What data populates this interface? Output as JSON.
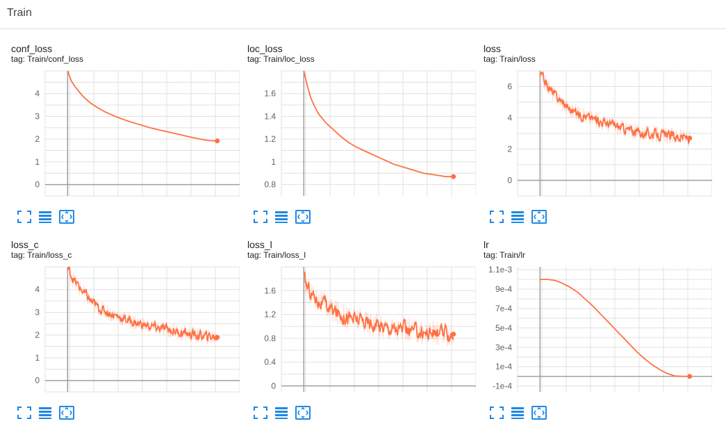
{
  "header": {
    "title": "Train"
  },
  "accent_color": "#ff7043",
  "toolbar_icons": [
    "fit-domain-icon",
    "toggle-log-scale-icon",
    "expand-icon"
  ],
  "chart_data": [
    {
      "type": "line",
      "title": "conf_loss",
      "tag": "tag: Train/conf_loss",
      "xlim": [
        -0.3,
        2.3
      ],
      "ylim": [
        -0.5,
        5
      ],
      "yticks": [
        0,
        1,
        2,
        3,
        4
      ],
      "ytick_labels": [
        "0",
        "1",
        "2",
        "3",
        "4"
      ],
      "grid": true,
      "noise": 0,
      "series": [
        {
          "x": [
            0,
            0.05,
            0.1,
            0.2,
            0.3,
            0.4,
            0.5,
            0.6,
            0.7,
            0.8,
            0.9,
            1.0,
            1.1,
            1.2,
            1.3,
            1.4,
            1.5,
            1.6,
            1.7,
            1.8,
            1.9,
            2.0
          ],
          "values": [
            5.0,
            4.55,
            4.3,
            3.9,
            3.6,
            3.38,
            3.2,
            3.05,
            2.92,
            2.8,
            2.7,
            2.6,
            2.5,
            2.42,
            2.35,
            2.27,
            2.2,
            2.12,
            2.05,
            1.98,
            1.93,
            1.92
          ]
        }
      ]
    },
    {
      "type": "line",
      "title": "loc_loss",
      "tag": "tag: Train/loc_loss",
      "xlim": [
        -0.3,
        2.3
      ],
      "ylim": [
        0.7,
        1.8
      ],
      "yticks": [
        0.8,
        1,
        1.2,
        1.4,
        1.6
      ],
      "ytick_labels": [
        "0.8",
        "1",
        "1.2",
        "1.4",
        "1.6"
      ],
      "grid": true,
      "noise": 0,
      "series": [
        {
          "x": [
            0,
            0.05,
            0.1,
            0.15,
            0.2,
            0.3,
            0.4,
            0.5,
            0.6,
            0.7,
            0.8,
            0.9,
            1.0,
            1.1,
            1.2,
            1.3,
            1.4,
            1.5,
            1.6,
            1.7,
            1.8,
            1.9,
            2.0
          ],
          "values": [
            1.8,
            1.66,
            1.55,
            1.48,
            1.42,
            1.34,
            1.28,
            1.22,
            1.17,
            1.13,
            1.1,
            1.07,
            1.04,
            1.01,
            0.98,
            0.96,
            0.94,
            0.92,
            0.9,
            0.89,
            0.88,
            0.87,
            0.87
          ]
        }
      ]
    },
    {
      "type": "line",
      "title": "loss",
      "tag": "tag: Train/loss",
      "xlim": [
        -0.3,
        2.3
      ],
      "ylim": [
        -1,
        7
      ],
      "yticks": [
        0,
        2,
        4,
        6
      ],
      "ytick_labels": [
        "0",
        "2",
        "4",
        "6"
      ],
      "grid": true,
      "noise": 0.3,
      "series": [
        {
          "x": [
            0,
            0.1,
            0.2,
            0.3,
            0.4,
            0.6,
            0.8,
            1.0,
            1.2,
            1.4,
            1.6,
            1.8,
            2.0
          ],
          "values": [
            6.8,
            6.0,
            5.4,
            5.0,
            4.5,
            4.1,
            3.8,
            3.5,
            3.2,
            3.0,
            2.9,
            2.8,
            2.7
          ]
        }
      ]
    },
    {
      "type": "line",
      "title": "loss_c",
      "tag": "tag: Train/loss_c",
      "xlim": [
        -0.3,
        2.3
      ],
      "ylim": [
        -0.5,
        5
      ],
      "yticks": [
        0,
        1,
        2,
        3,
        4
      ],
      "ytick_labels": [
        "0",
        "1",
        "2",
        "3",
        "4"
      ],
      "grid": true,
      "noise": 0.2,
      "series": [
        {
          "x": [
            0,
            0.1,
            0.2,
            0.3,
            0.4,
            0.6,
            0.8,
            1.0,
            1.2,
            1.4,
            1.6,
            1.8,
            2.0
          ],
          "values": [
            4.9,
            4.3,
            3.9,
            3.5,
            3.2,
            2.9,
            2.65,
            2.45,
            2.3,
            2.2,
            2.05,
            1.95,
            1.9
          ]
        }
      ]
    },
    {
      "type": "line",
      "title": "loss_l",
      "tag": "tag: Train/loss_l",
      "xlim": [
        -0.3,
        2.3
      ],
      "ylim": [
        -0.1,
        2.0
      ],
      "yticks": [
        0,
        0.4,
        0.8,
        1.2,
        1.6
      ],
      "ytick_labels": [
        "0",
        "0.4",
        "0.8",
        "1.2",
        "1.6"
      ],
      "grid": true,
      "noise": 0.12,
      "series": [
        {
          "x": [
            0,
            0.1,
            0.2,
            0.3,
            0.4,
            0.6,
            0.8,
            1.0,
            1.2,
            1.4,
            1.6,
            1.8,
            2.0
          ],
          "values": [
            1.75,
            1.55,
            1.42,
            1.33,
            1.25,
            1.15,
            1.08,
            1.02,
            0.97,
            0.93,
            0.9,
            0.88,
            0.87
          ]
        }
      ]
    },
    {
      "type": "line",
      "title": "lr",
      "tag": "tag: Train/lr",
      "xlim": [
        -0.3,
        2.3
      ],
      "ylim": [
        -0.00016,
        0.00113
      ],
      "yticks": [
        -0.0001,
        0.0001,
        0.0003,
        0.0005,
        0.0007,
        0.0009,
        0.0011
      ],
      "ytick_labels": [
        "-1e-4",
        "1e-4",
        "3e-4",
        "5e-4",
        "7e-4",
        "9e-4",
        "1.1e-3"
      ],
      "grid": true,
      "noise": 0,
      "series": [
        {
          "x": [
            0,
            0.1,
            0.2,
            0.3,
            0.4,
            0.5,
            0.6,
            0.7,
            0.8,
            0.9,
            1.0,
            1.1,
            1.2,
            1.3,
            1.4,
            1.5,
            1.6,
            1.7,
            1.8,
            1.9,
            2.0
          ],
          "values": [
            0.001,
            0.001,
            0.00099,
            0.00096,
            0.00092,
            0.00087,
            0.0008,
            0.00073,
            0.00065,
            0.00057,
            0.00049,
            0.00041,
            0.00033,
            0.00025,
            0.00018,
            0.00012,
            7e-05,
            3e-05,
            5e-06,
            0.0,
            0.0
          ]
        }
      ]
    }
  ]
}
